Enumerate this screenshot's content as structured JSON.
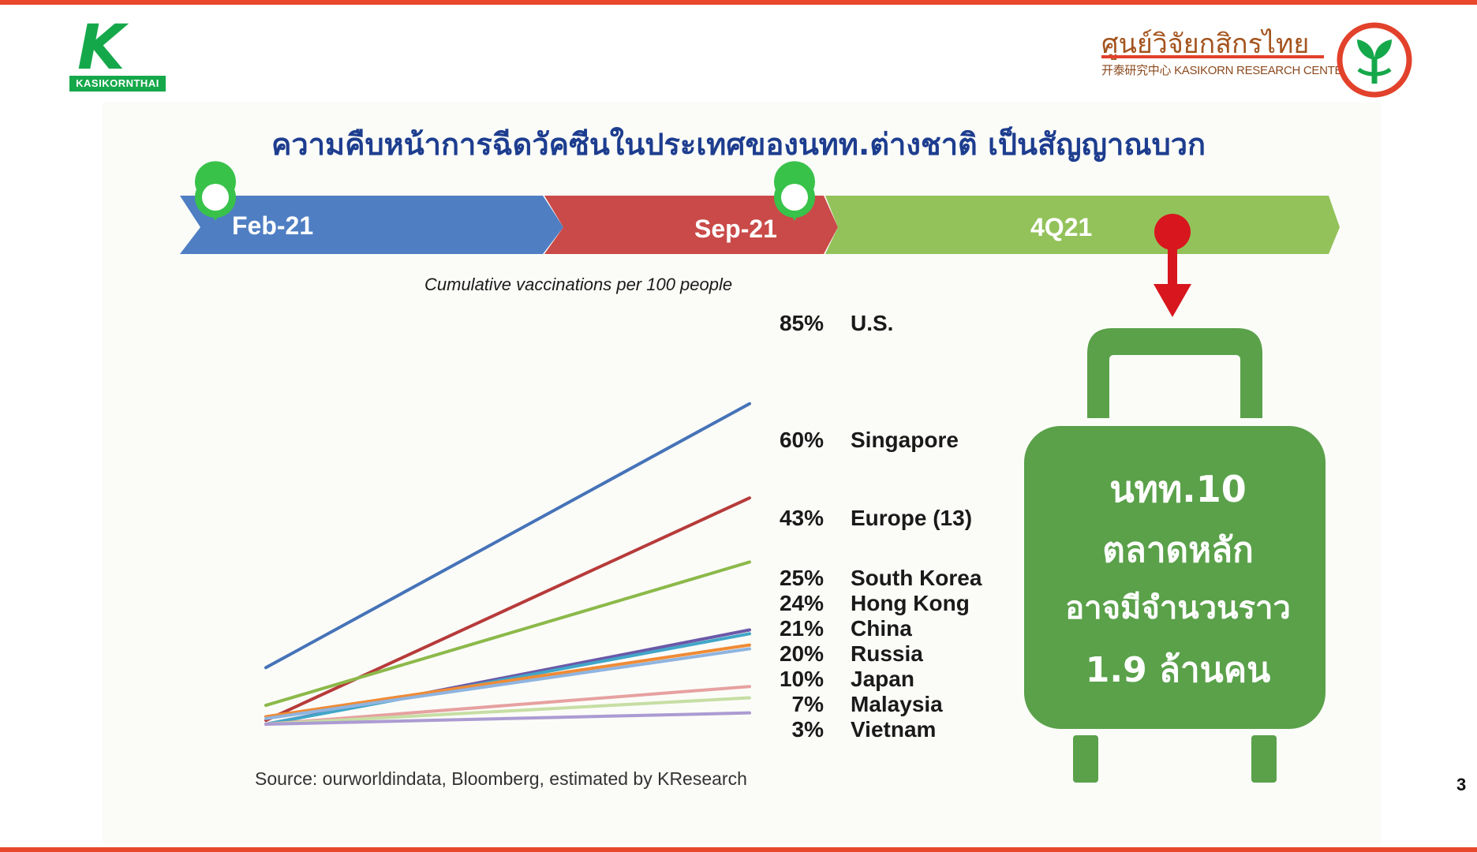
{
  "branding": {
    "kasikornthai_label": "KASIKORNTHAI",
    "kasikornthai_letter": "K",
    "kresearch_thai": "ศูนย์วิจัยกสิกรไทย",
    "kresearch_en": "开泰研究中心 KASIKORN RESEARCH CENTER",
    "brand_green": "#15a84a",
    "brand_red": "#e2412b"
  },
  "headline": "ความคืบหน้าการฉีดวัคซีนในประเทศของนทท.ต่างชาติ เป็นสัญญาณบวก",
  "timeline": {
    "segments": [
      {
        "label": "Feb-21",
        "color": "#4f7ec3"
      },
      {
        "label": "Sep-21",
        "color": "#c94a48"
      },
      {
        "label": "4Q21",
        "color": "#93c25a"
      }
    ],
    "marker_color": "#38c24a",
    "pin_color": "#d8161e"
  },
  "chart_data": {
    "type": "line",
    "title": "",
    "subtitle": "Cumulative vaccinations per 100 people",
    "x": [
      "Feb-21",
      "Sep-21"
    ],
    "xlabel": "",
    "ylabel": "",
    "ylim": [
      0,
      100
    ],
    "grid": false,
    "series": [
      {
        "name": "U.S.",
        "values": [
          15,
          85
        ],
        "label": "85%",
        "color": "#4673b8"
      },
      {
        "name": "Singapore",
        "values": [
          1,
          60
        ],
        "label": "60%",
        "color": "#b63b3a"
      },
      {
        "name": "Europe (13)",
        "values": [
          5,
          43
        ],
        "label": "43%",
        "color": "#8cb94a"
      },
      {
        "name": "South Korea",
        "values": [
          0,
          25
        ],
        "label": "25%",
        "color": "#6b58a8"
      },
      {
        "name": "Hong Kong",
        "values": [
          0,
          24
        ],
        "label": "24%",
        "color": "#41a6c7"
      },
      {
        "name": "China",
        "values": [
          2,
          21
        ],
        "label": "21%",
        "color": "#ef8b35"
      },
      {
        "name": "Russia",
        "values": [
          1.5,
          20
        ],
        "label": "20%",
        "color": "#8fb4e0"
      },
      {
        "name": "Japan",
        "values": [
          0,
          10
        ],
        "label": "10%",
        "color": "#e6a1a0"
      },
      {
        "name": "Malaysia",
        "values": [
          0,
          7
        ],
        "label": "7%",
        "color": "#c6dea4"
      },
      {
        "name": "Vietnam",
        "values": [
          0,
          3
        ],
        "label": "3%",
        "color": "#ab9bd2"
      }
    ],
    "source": "Source: ourworldindata, Bloomberg, estimated by KResearch"
  },
  "suitcase": {
    "lines": [
      "นทท.10",
      "ตลาดหลัก",
      "อาจมีจำนวนราว",
      "1.9 ล้านคน"
    ],
    "color": "#5aa14a"
  },
  "page_number": "3"
}
